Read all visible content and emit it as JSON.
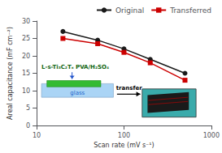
{
  "chart_data": {
    "type": "line",
    "xlabel": "Scan rate (mV s⁻¹)",
    "ylabel": "Areal capacitance (mF cm⁻²)",
    "log": "x",
    "x": [
      20,
      50,
      100,
      200,
      500
    ],
    "xlim": [
      10,
      1000
    ],
    "xticks": [
      10,
      100,
      1000
    ],
    "ylim": [
      0,
      30
    ],
    "yticks": [
      0,
      5,
      10,
      15,
      20,
      25,
      30
    ],
    "grid": false,
    "legend": "upper right",
    "series": [
      {
        "name": "Original",
        "color": "#1a1a1a",
        "marker": "circle",
        "values": [
          27.0,
          24.5,
          22.0,
          19.0,
          15.0
        ]
      },
      {
        "name": "Transferred",
        "color": "#cc0000",
        "marker": "square",
        "values": [
          25.0,
          23.5,
          21.0,
          18.0,
          13.0
        ]
      }
    ],
    "annotations": [
      "L-s-Ti₃C₂Tₓ PVA/H₂SO₄",
      "glass",
      "transfer"
    ]
  }
}
